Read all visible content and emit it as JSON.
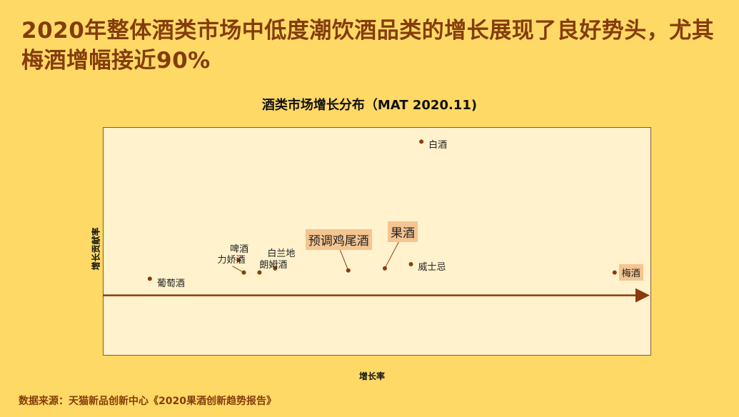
{
  "headline": "2020年整体酒类市场中低度潮饮酒品类的增长展现了良好势头，尤其梅酒增幅接近90%",
  "source": "数据来源：天猫新品创新中心《2020果酒创新趋势报告》",
  "colors": {
    "background": "#FFD966",
    "plot_background": "#FFF2CC",
    "title": "#843C0C",
    "point": "#8B3A0F",
    "highlight": "#F4C591"
  },
  "chart_data": {
    "type": "scatter",
    "title": "酒类市场增长分布（MAT 2020.11)",
    "xlabel": "增长率",
    "ylabel": "增长贡献率",
    "xlim": [
      -8,
      97
    ],
    "ylim": [
      -29,
      81
    ],
    "grid": false,
    "points": [
      {
        "label": "葡萄酒",
        "x": 1,
        "y": 8,
        "highlight": false
      },
      {
        "label": "啤酒",
        "x": 18,
        "y": 17,
        "highlight": false
      },
      {
        "label": "力娇酒",
        "x": 19,
        "y": 11,
        "highlight": false
      },
      {
        "label": "白兰地",
        "x": 22,
        "y": 11,
        "highlight": false
      },
      {
        "label": "朗姆酒",
        "x": 25,
        "y": 13,
        "highlight": false
      },
      {
        "label": "预调鸡尾酒",
        "x": 39,
        "y": 12,
        "highlight": true
      },
      {
        "label": "果酒",
        "x": 46,
        "y": 13,
        "highlight": true
      },
      {
        "label": "威士忌",
        "x": 51,
        "y": 15,
        "highlight": false
      },
      {
        "label": "白酒",
        "x": 53,
        "y": 74,
        "highlight": false
      },
      {
        "label": "梅酒",
        "x": 90,
        "y": 11,
        "highlight": true
      }
    ]
  }
}
